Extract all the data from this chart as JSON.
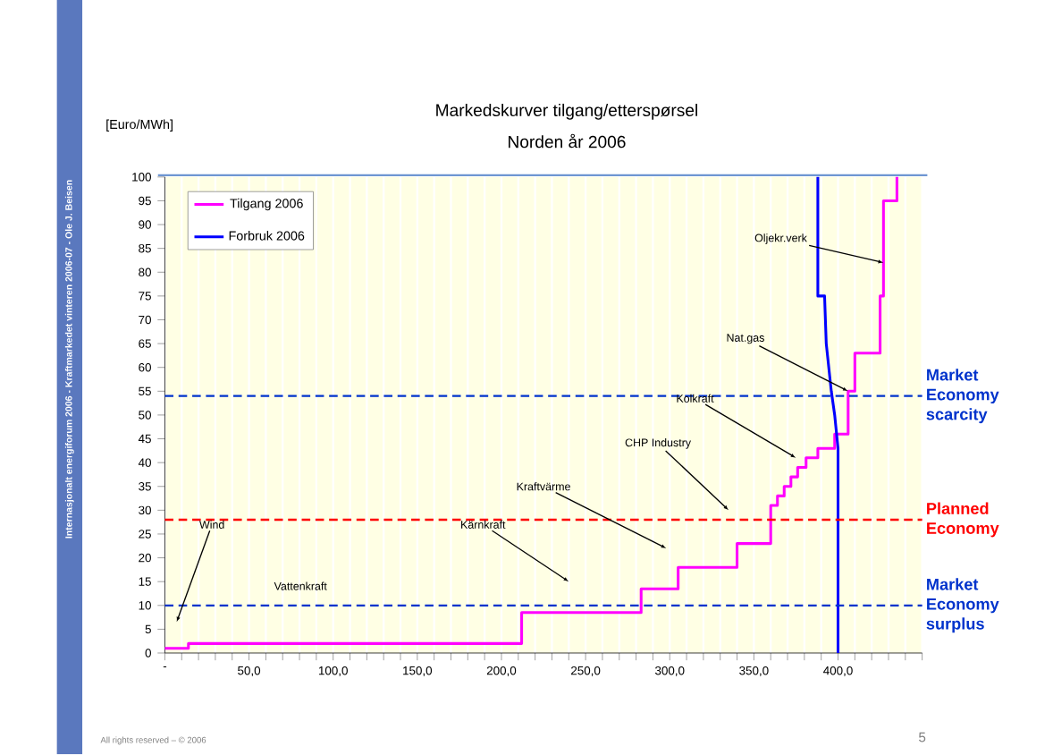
{
  "chart_data": {
    "type": "line",
    "title": "Markedskurver tilgang/etterspørsel",
    "subtitle": "Norden år 2006",
    "ylabel": "[Euro/MWh]",
    "xlim": [
      0,
      450
    ],
    "ylim": [
      0,
      100
    ],
    "xticks": [
      {
        "value": 0,
        "label": "-"
      },
      {
        "value": 10,
        "label": null
      },
      {
        "value": 20,
        "label": null
      },
      {
        "value": 30,
        "label": null
      },
      {
        "value": 40,
        "label": null
      },
      {
        "value": 50,
        "label": "50,0"
      },
      {
        "value": 60,
        "label": null
      },
      {
        "value": 70,
        "label": null
      },
      {
        "value": 80,
        "label": null
      },
      {
        "value": 90,
        "label": null
      },
      {
        "value": 100,
        "label": "100,0"
      },
      {
        "value": 110,
        "label": null
      },
      {
        "value": 120,
        "label": null
      },
      {
        "value": 130,
        "label": null
      },
      {
        "value": 140,
        "label": null
      },
      {
        "value": 150,
        "label": "150,0"
      },
      {
        "value": 160,
        "label": null
      },
      {
        "value": 170,
        "label": null
      },
      {
        "value": 180,
        "label": null
      },
      {
        "value": 190,
        "label": null
      },
      {
        "value": 200,
        "label": "200,0"
      },
      {
        "value": 210,
        "label": null
      },
      {
        "value": 220,
        "label": null
      },
      {
        "value": 230,
        "label": null
      },
      {
        "value": 240,
        "label": null
      },
      {
        "value": 250,
        "label": "250,0"
      },
      {
        "value": 260,
        "label": null
      },
      {
        "value": 270,
        "label": null
      },
      {
        "value": 280,
        "label": null
      },
      {
        "value": 290,
        "label": null
      },
      {
        "value": 300,
        "label": "300,0"
      },
      {
        "value": 310,
        "label": null
      },
      {
        "value": 320,
        "label": null
      },
      {
        "value": 330,
        "label": null
      },
      {
        "value": 340,
        "label": null
      },
      {
        "value": 350,
        "label": "350,0"
      },
      {
        "value": 360,
        "label": null
      },
      {
        "value": 370,
        "label": null
      },
      {
        "value": 380,
        "label": null
      },
      {
        "value": 390,
        "label": null
      },
      {
        "value": 400,
        "label": "400,0"
      },
      {
        "value": 410,
        "label": null
      },
      {
        "value": 420,
        "label": null
      },
      {
        "value": 430,
        "label": null
      },
      {
        "value": 440,
        "label": null
      },
      {
        "value": 450,
        "label": null
      }
    ],
    "yticks": [
      0,
      5,
      10,
      15,
      20,
      25,
      30,
      35,
      40,
      45,
      50,
      55,
      60,
      65,
      70,
      75,
      80,
      85,
      90,
      95,
      100
    ],
    "grid": "x",
    "legend": "top left",
    "marker": "none",
    "line_style": "solid",
    "series": [
      {
        "name": "Tilgang 2006",
        "color": "#ff00ff",
        "x": [
          0,
          14,
          14,
          212,
          212,
          283,
          283,
          305,
          305,
          340,
          340,
          360,
          360,
          364,
          364,
          368,
          368,
          372,
          372,
          376,
          376,
          381,
          381,
          388,
          388,
          398,
          398,
          406,
          406,
          410,
          410,
          425,
          425,
          427,
          427,
          435,
          435
        ],
        "values": [
          1,
          1,
          2,
          2,
          8.5,
          8.5,
          13.5,
          13.5,
          18,
          18,
          23,
          23,
          31,
          31,
          33,
          33,
          35,
          35,
          37,
          37,
          39,
          39,
          41,
          41,
          43,
          43,
          46,
          46,
          55,
          55,
          63,
          63,
          75,
          75,
          95,
          95,
          100
        ]
      },
      {
        "name": "Forbruk 2006",
        "color": "#0000ff",
        "x": [
          400,
          400,
          398,
          396,
          393,
          392,
          388,
          388
        ],
        "values": [
          0,
          43,
          50,
          55,
          65,
          75,
          75,
          100
        ]
      }
    ],
    "ref_lines": [
      {
        "axis": "y",
        "value": 54,
        "label": "Market Economy scarcity",
        "color": "#0033cc",
        "line_style": "dashed"
      },
      {
        "axis": "y",
        "value": 28,
        "label": "Planned Economy",
        "color": "#ff0000",
        "line_style": "dashed"
      },
      {
        "axis": "y",
        "value": 10,
        "label": "Market Economy surplus",
        "color": "#0033cc",
        "line_style": "dashed"
      }
    ],
    "annotations": [
      {
        "text": "Wind",
        "x": 7,
        "y": 6.5
      },
      "Vattenkraft",
      {
        "text": "Kärnkraft",
        "x": 240,
        "y": 15
      },
      {
        "text": "Kraftvärme",
        "x": 298,
        "y": 22
      },
      {
        "text": "CHP Industry",
        "x": 335,
        "y": 30
      },
      {
        "text": "Kolkraft",
        "x": 375,
        "y": 41
      },
      {
        "text": "Nat.gas",
        "x": 406,
        "y": 55
      },
      {
        "text": "Oljekr.verk",
        "x": 427,
        "y": 82
      },
      "All rights reserved – © 2006",
      "5",
      "Internasjonalt energiforum 2006 - Kraftmarkedet vinteren 2006-07 - Ole J. Beisen"
    ]
  }
}
